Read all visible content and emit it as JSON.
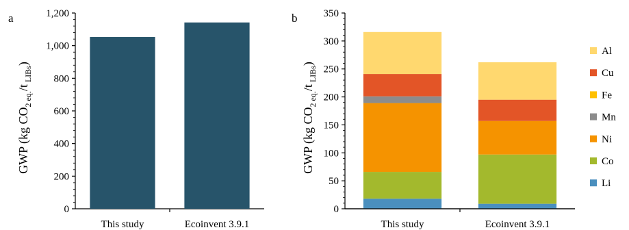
{
  "chart_data": [
    {
      "panel": "a",
      "type": "bar",
      "categories": [
        "This study",
        "Ecoinvent 3.9.1"
      ],
      "values": [
        1053,
        1142
      ],
      "ylabel": {
        "main": "GWP (kg CO",
        "sub1": "2 eq.",
        "mid": "/t",
        "sub2": " LIBs",
        "end": ")"
      },
      "ylim": [
        0,
        1200
      ],
      "yticks": [
        0,
        200,
        400,
        600,
        800,
        1000,
        1200
      ],
      "ytick_labels": [
        "0",
        "200",
        "400",
        "600",
        "800",
        "1,000",
        "1,200"
      ],
      "color": "#27546a",
      "grid": false
    },
    {
      "panel": "b",
      "type": "bar",
      "stacked": true,
      "categories": [
        "This study",
        "Ecoinvent 3.9.1"
      ],
      "series": [
        {
          "name": "Li",
          "values": [
            18,
            9
          ],
          "color": "#4a8fbe"
        },
        {
          "name": "Co",
          "values": [
            48,
            88
          ],
          "color": "#a3b92d"
        },
        {
          "name": "Ni",
          "values": [
            123,
            60
          ],
          "color": "#f59300"
        },
        {
          "name": "Mn",
          "values": [
            12,
            0
          ],
          "color": "#8c8c8c"
        },
        {
          "name": "Fe",
          "values": [
            0,
            0
          ],
          "color": "#ffc000"
        },
        {
          "name": "Cu",
          "values": [
            40,
            38
          ],
          "color": "#e35527"
        },
        {
          "name": "Al",
          "values": [
            75,
            67
          ],
          "color": "#ffd86f"
        }
      ],
      "ylabel": {
        "main": "GWP (kg CO",
        "sub1": "2 eq.",
        "mid": "/t",
        "sub2": " LIBs",
        "end": ")"
      },
      "ylim": [
        0,
        350
      ],
      "yticks": [
        0,
        50,
        100,
        150,
        200,
        250,
        300,
        350
      ],
      "ytick_labels": [
        "0",
        "50",
        "100",
        "150",
        "200",
        "250",
        "300",
        "350"
      ],
      "legend_position": "right",
      "grid": false
    }
  ]
}
